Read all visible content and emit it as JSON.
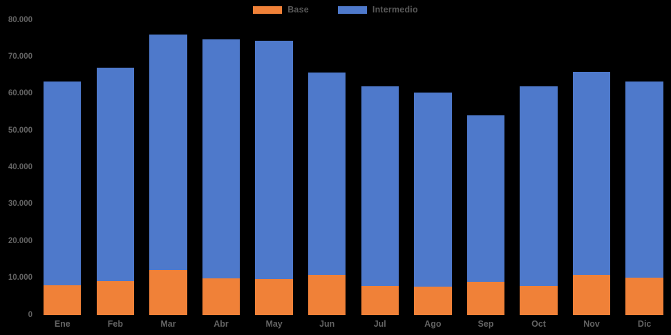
{
  "legend": {
    "base_label": "Base",
    "intermedio_label": "Intermedio"
  },
  "colors": {
    "base": "#F08138",
    "intermedio": "#4E79CB",
    "background": "#000000",
    "axis_label": "#636363",
    "legend_label": "#595959"
  },
  "chart_data": {
    "type": "bar",
    "stacked": true,
    "title": "",
    "xlabel": "",
    "ylabel": "",
    "categories": [
      "Ene",
      "Feb",
      "Mar",
      "Abr",
      "May",
      "Jun",
      "Jul",
      "Ago",
      "Sep",
      "Oct",
      "Nov",
      "Dic"
    ],
    "series": [
      {
        "name": "Base",
        "color": "#F08138",
        "values": [
          8000,
          9200,
          12100,
          9900,
          9800,
          10800,
          7800,
          7600,
          9000,
          7800,
          10900,
          10100
        ]
      },
      {
        "name": "Intermedio",
        "color": "#4E79CB",
        "values": [
          55400,
          57800,
          63900,
          64900,
          64500,
          55000,
          54200,
          52800,
          45100,
          54200,
          55100,
          53200
        ]
      }
    ],
    "totals": [
      63400,
      67000,
      76000,
      74800,
      74300,
      65800,
      62000,
      60400,
      54100,
      62000,
      66000,
      63300
    ],
    "ylim": [
      0,
      80000
    ],
    "ytick_step": 10000,
    "ytick_labels": [
      "0",
      "10.000",
      "20.000",
      "30.000",
      "40.000",
      "50.000",
      "60.000",
      "70.000",
      "80.000"
    ],
    "grid": false,
    "legend_position": "top-center"
  }
}
